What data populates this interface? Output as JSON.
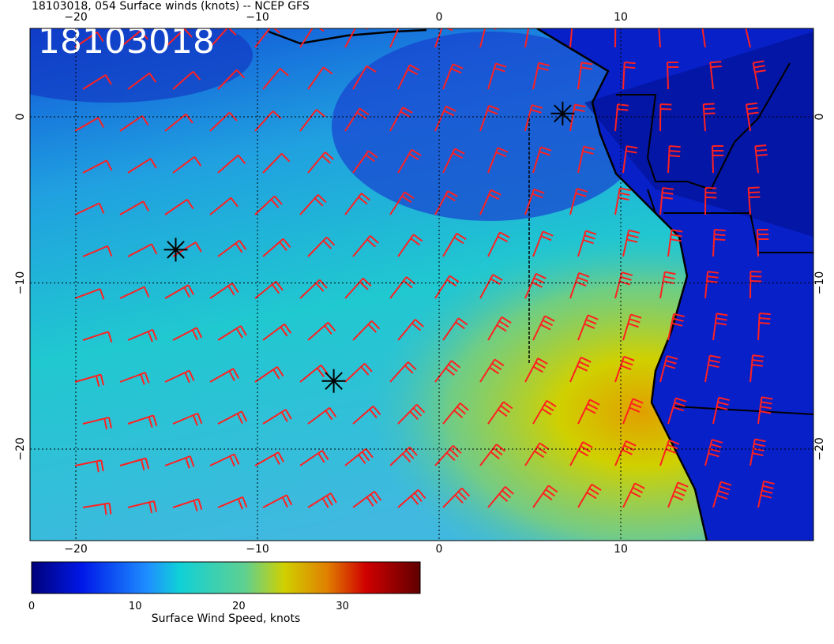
{
  "header": {
    "title": "18103018, 054 Surface winds (knots) -- NCEP GFS"
  },
  "map": {
    "label": "18103018",
    "lon_ticks": [
      {
        "value": -20,
        "label": "−20"
      },
      {
        "value": -10,
        "label": "−10"
      },
      0,
      10
    ],
    "lat_ticks": [
      0,
      {
        "value": -10,
        "label": "−10"
      },
      {
        "value": -20,
        "label": "−20"
      }
    ]
  },
  "colorbar": {
    "label": "Surface Wind Speed, knots",
    "range": [
      0,
      37.5
    ],
    "ticks": [
      0,
      10,
      20,
      30
    ]
  }
}
